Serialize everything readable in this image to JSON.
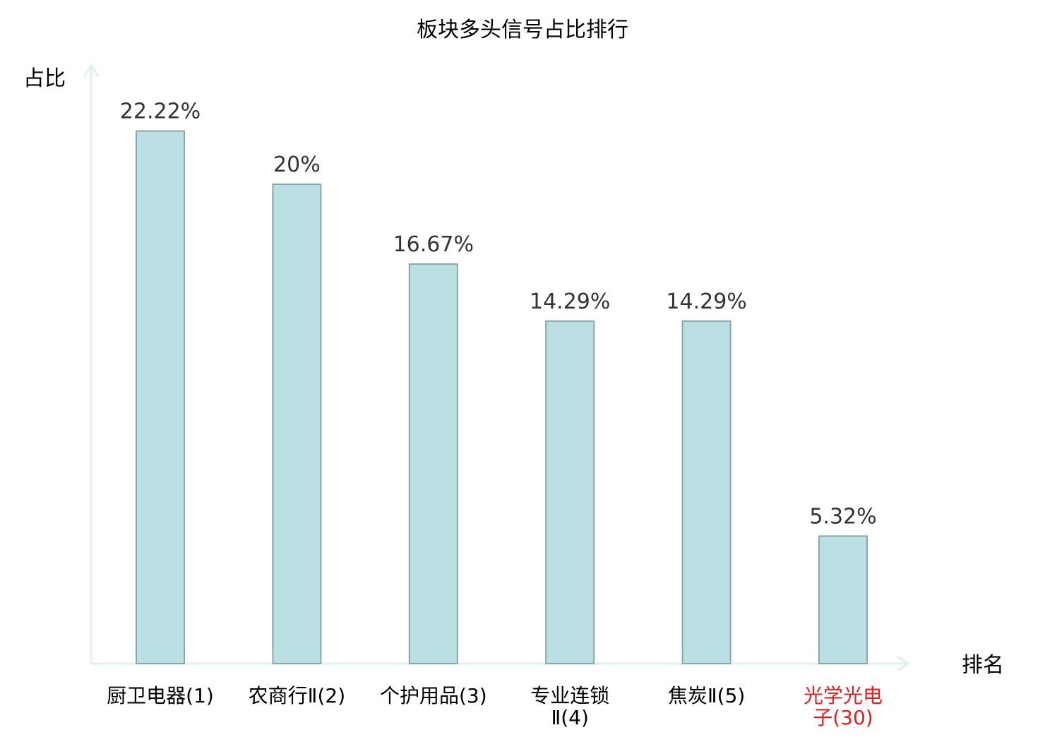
{
  "chart_data": {
    "type": "bar",
    "title": "板块多头信号占比排行",
    "ylabel": "占比",
    "xlabel": "排名",
    "ylim": [
      0,
      25
    ],
    "grid": false,
    "legend": "none",
    "categories": [
      [
        "厨卫电器(1)"
      ],
      [
        "农商行Ⅱ(2)"
      ],
      [
        "个护用品(3)"
      ],
      [
        "专业连锁",
        "Ⅱ(4)"
      ],
      [
        "焦炭Ⅱ(5)"
      ],
      [
        "光学光电",
        "子(30)"
      ]
    ],
    "values": [
      22.22,
      20,
      16.67,
      14.29,
      14.29,
      5.32
    ],
    "value_labels": [
      "22.22%",
      "20%",
      "16.67%",
      "14.29%",
      "14.29%",
      "5.32%"
    ],
    "highlight_index": 5
  },
  "colors": {
    "bar_fill": "#bbe0e3",
    "bar_stroke": "#8aa7aa",
    "axis": "#e0f2ef",
    "text": "#000000",
    "value_text": "#333333",
    "highlight_text": "#e02020"
  }
}
